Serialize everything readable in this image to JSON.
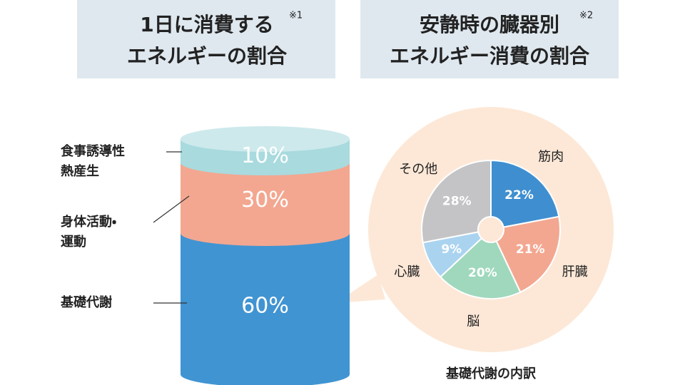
{
  "chart_data": [
    {
      "type": "cylinder",
      "title_lines": [
        "1日に消費する",
        "エネルギーの割合"
      ],
      "title_note": "※1",
      "categories": [
        [
          "食事誘導性",
          "熱産生"
        ],
        [
          "身体活動・",
          "運動"
        ],
        [
          "基礎代謝"
        ]
      ],
      "values": [
        10,
        30,
        60
      ],
      "value_labels": [
        "10%",
        "30%",
        "60%"
      ],
      "colors": [
        "#a8dade",
        "#f3a790",
        "#4194d2"
      ]
    },
    {
      "type": "pie",
      "title_lines": [
        "安静時の臓器別",
        "エネルギー消費の割合"
      ],
      "title_note": "※2",
      "categories": [
        "筋肉",
        "肝臓",
        "脳",
        "心臓",
        "その他"
      ],
      "values": [
        22,
        21,
        20,
        9,
        28
      ],
      "value_labels": [
        "22%",
        "21%",
        "20%",
        "9%",
        "28%"
      ],
      "colors": [
        "#3f8fd0",
        "#f3a790",
        "#9fd8bd",
        "#aad3f0",
        "#c4c4c7"
      ],
      "caption": "基礎代謝の内訳"
    }
  ]
}
